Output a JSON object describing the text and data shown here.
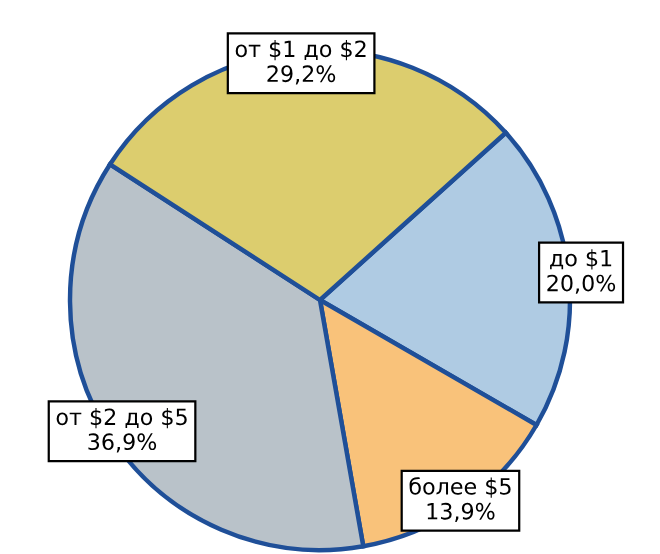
{
  "chart_data": {
    "type": "pie",
    "categories": [
      "до $1",
      "более $5",
      "от $2 до $5",
      "от $1 до $2"
    ],
    "values": [
      20.0,
      13.9,
      36.9,
      29.2
    ],
    "value_labels": [
      "20,0%",
      "13,9%",
      "36,9%",
      "29,2%"
    ],
    "colors": [
      "#afcbe3",
      "#f9c27a",
      "#b9c2c9",
      "#dccd6e"
    ]
  }
}
